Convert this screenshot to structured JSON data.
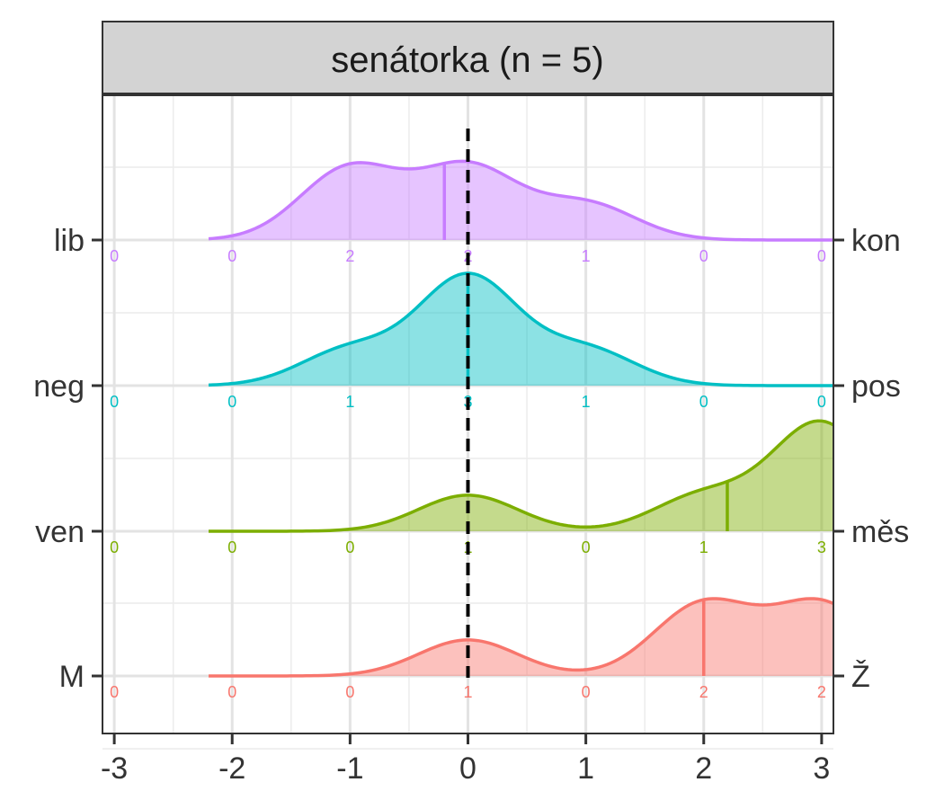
{
  "chart_data": {
    "type": "ridgeline",
    "title": "",
    "panel_title": "senátorka (n = 5)",
    "x_ticks": [
      "-3",
      "-2",
      "-1",
      "0",
      "1",
      "2",
      "3"
    ],
    "xlim": [
      -3.1,
      3.1
    ],
    "reference_line_x": 0,
    "grid": true,
    "series": [
      {
        "left_label": "lib",
        "right_label": "kon",
        "color": "#c77cff",
        "x": [
          -3,
          -2,
          -1,
          0,
          1,
          2,
          3
        ],
        "counts": [
          0,
          0,
          2,
          2,
          1,
          0,
          0
        ],
        "mean": -0.2
      },
      {
        "left_label": "neg",
        "right_label": "pos",
        "color": "#00bfc4",
        "x": [
          -3,
          -2,
          -1,
          0,
          1,
          2,
          3
        ],
        "counts": [
          0,
          0,
          1,
          3,
          1,
          0,
          0
        ],
        "mean": 0
      },
      {
        "left_label": "ven",
        "right_label": "měs",
        "color": "#7cae00",
        "x": [
          -3,
          -2,
          -1,
          0,
          1,
          2,
          3
        ],
        "counts": [
          0,
          0,
          0,
          1,
          0,
          1,
          3
        ],
        "mean": 2.2
      },
      {
        "left_label": "M",
        "right_label": "Ž",
        "color": "#f8766d",
        "x": [
          -3,
          -2,
          -1,
          0,
          1,
          2,
          3
        ],
        "counts": [
          0,
          0,
          0,
          1,
          0,
          2,
          2
        ],
        "mean": 2
      }
    ]
  }
}
